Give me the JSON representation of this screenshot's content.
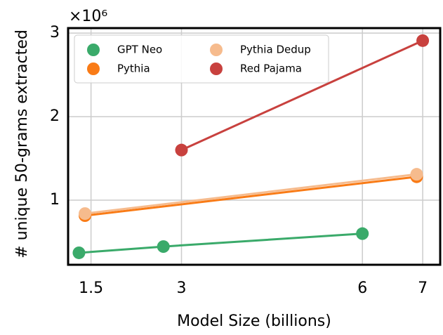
{
  "chart_data": {
    "type": "line",
    "y_label": "# unique 50-grams extracted",
    "x_label": "Model Size (billions)",
    "offset_text": "×10⁶",
    "series": [
      {
        "name": "GPT Neo",
        "color": "#3aaa6a",
        "x": [
          1.3,
          2.7,
          6.0
        ],
        "values": [
          0.37,
          0.445,
          0.6
        ]
      },
      {
        "name": "Pythia",
        "color": "#f97b16",
        "x": [
          1.4,
          6.9
        ],
        "values": [
          0.815,
          1.28
        ]
      },
      {
        "name": "Pythia Dedup",
        "color": "#f6bb8d",
        "x": [
          1.4,
          6.9
        ],
        "values": [
          0.84,
          1.31
        ]
      },
      {
        "name": "Red Pajama",
        "color": "#c8413e",
        "x": [
          3,
          7
        ],
        "values": [
          1.6,
          2.91
        ]
      }
    ],
    "xlim": [
      1.12,
      7.29
    ],
    "xticks": [
      1.5,
      3,
      6,
      7
    ],
    "ylim": [
      0.227,
      3.06
    ],
    "yticks": [
      1,
      2,
      3
    ],
    "grid": true,
    "legend": "upper left"
  }
}
